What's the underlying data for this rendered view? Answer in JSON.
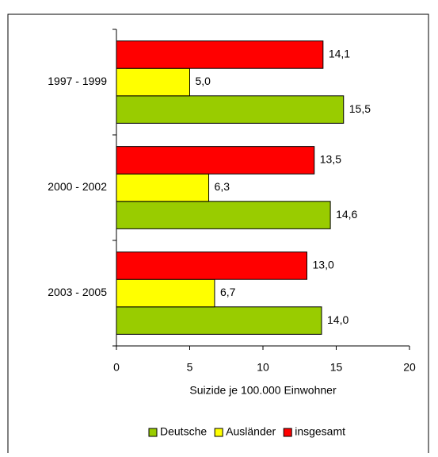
{
  "chart_data": {
    "type": "hbar",
    "categories": [
      "1997 - 1999",
      "2000 - 2002",
      "2003 - 2005"
    ],
    "series": [
      {
        "name": "Deutsche",
        "color": "#99cc00",
        "values": [
          15.5,
          14.6,
          14.0
        ],
        "value_labels": [
          "15,5",
          "14,6",
          "14,0"
        ]
      },
      {
        "name": "Ausländer",
        "color": "#ffff00",
        "values": [
          5.0,
          6.3,
          6.7
        ],
        "value_labels": [
          "5,0",
          "6,3",
          "6,7"
        ]
      },
      {
        "name": "insgesamt",
        "color": "#ff0000",
        "values": [
          14.1,
          13.5,
          13.0
        ],
        "value_labels": [
          "14,1",
          "13,5",
          "13,0"
        ]
      }
    ],
    "xlabel": "Suizide je 100.000 Einwohner",
    "xlim": [
      0,
      20
    ],
    "xticks": [
      0,
      5,
      10,
      15,
      20
    ],
    "legend": "bottom"
  }
}
